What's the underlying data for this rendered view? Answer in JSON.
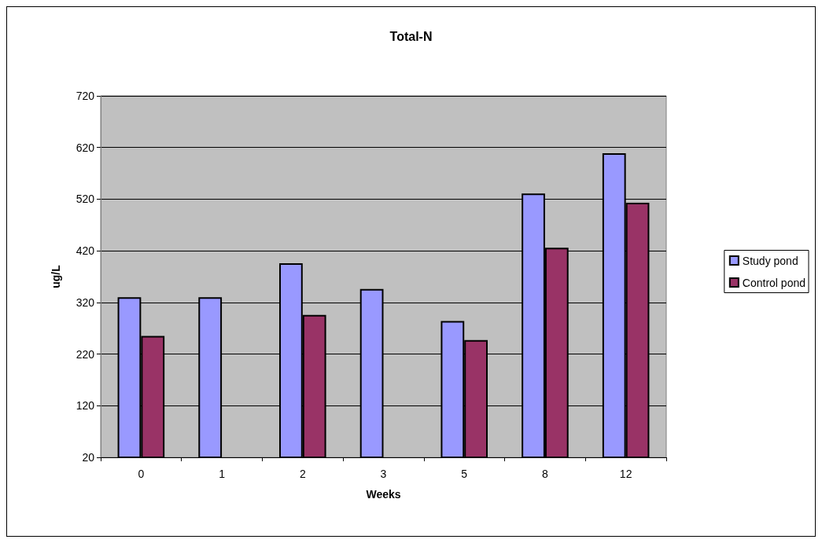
{
  "chart_data": {
    "type": "bar",
    "title": "Total-N",
    "xlabel": "Weeks",
    "ylabel": "ug/L",
    "categories": [
      "0",
      "1",
      "2",
      "3",
      "5",
      "8",
      "12"
    ],
    "series": [
      {
        "name": "Study pond",
        "color": "#9999ff",
        "values": [
          330,
          330,
          396,
          346,
          284,
          531,
          609
        ]
      },
      {
        "name": "Control pond",
        "color": "#993366",
        "values": [
          255,
          null,
          296,
          null,
          247,
          426,
          513
        ]
      }
    ],
    "ylim": [
      20,
      720
    ],
    "yticks": [
      20,
      120,
      220,
      320,
      420,
      520,
      620,
      720
    ],
    "grid": "y",
    "legend": "right"
  }
}
